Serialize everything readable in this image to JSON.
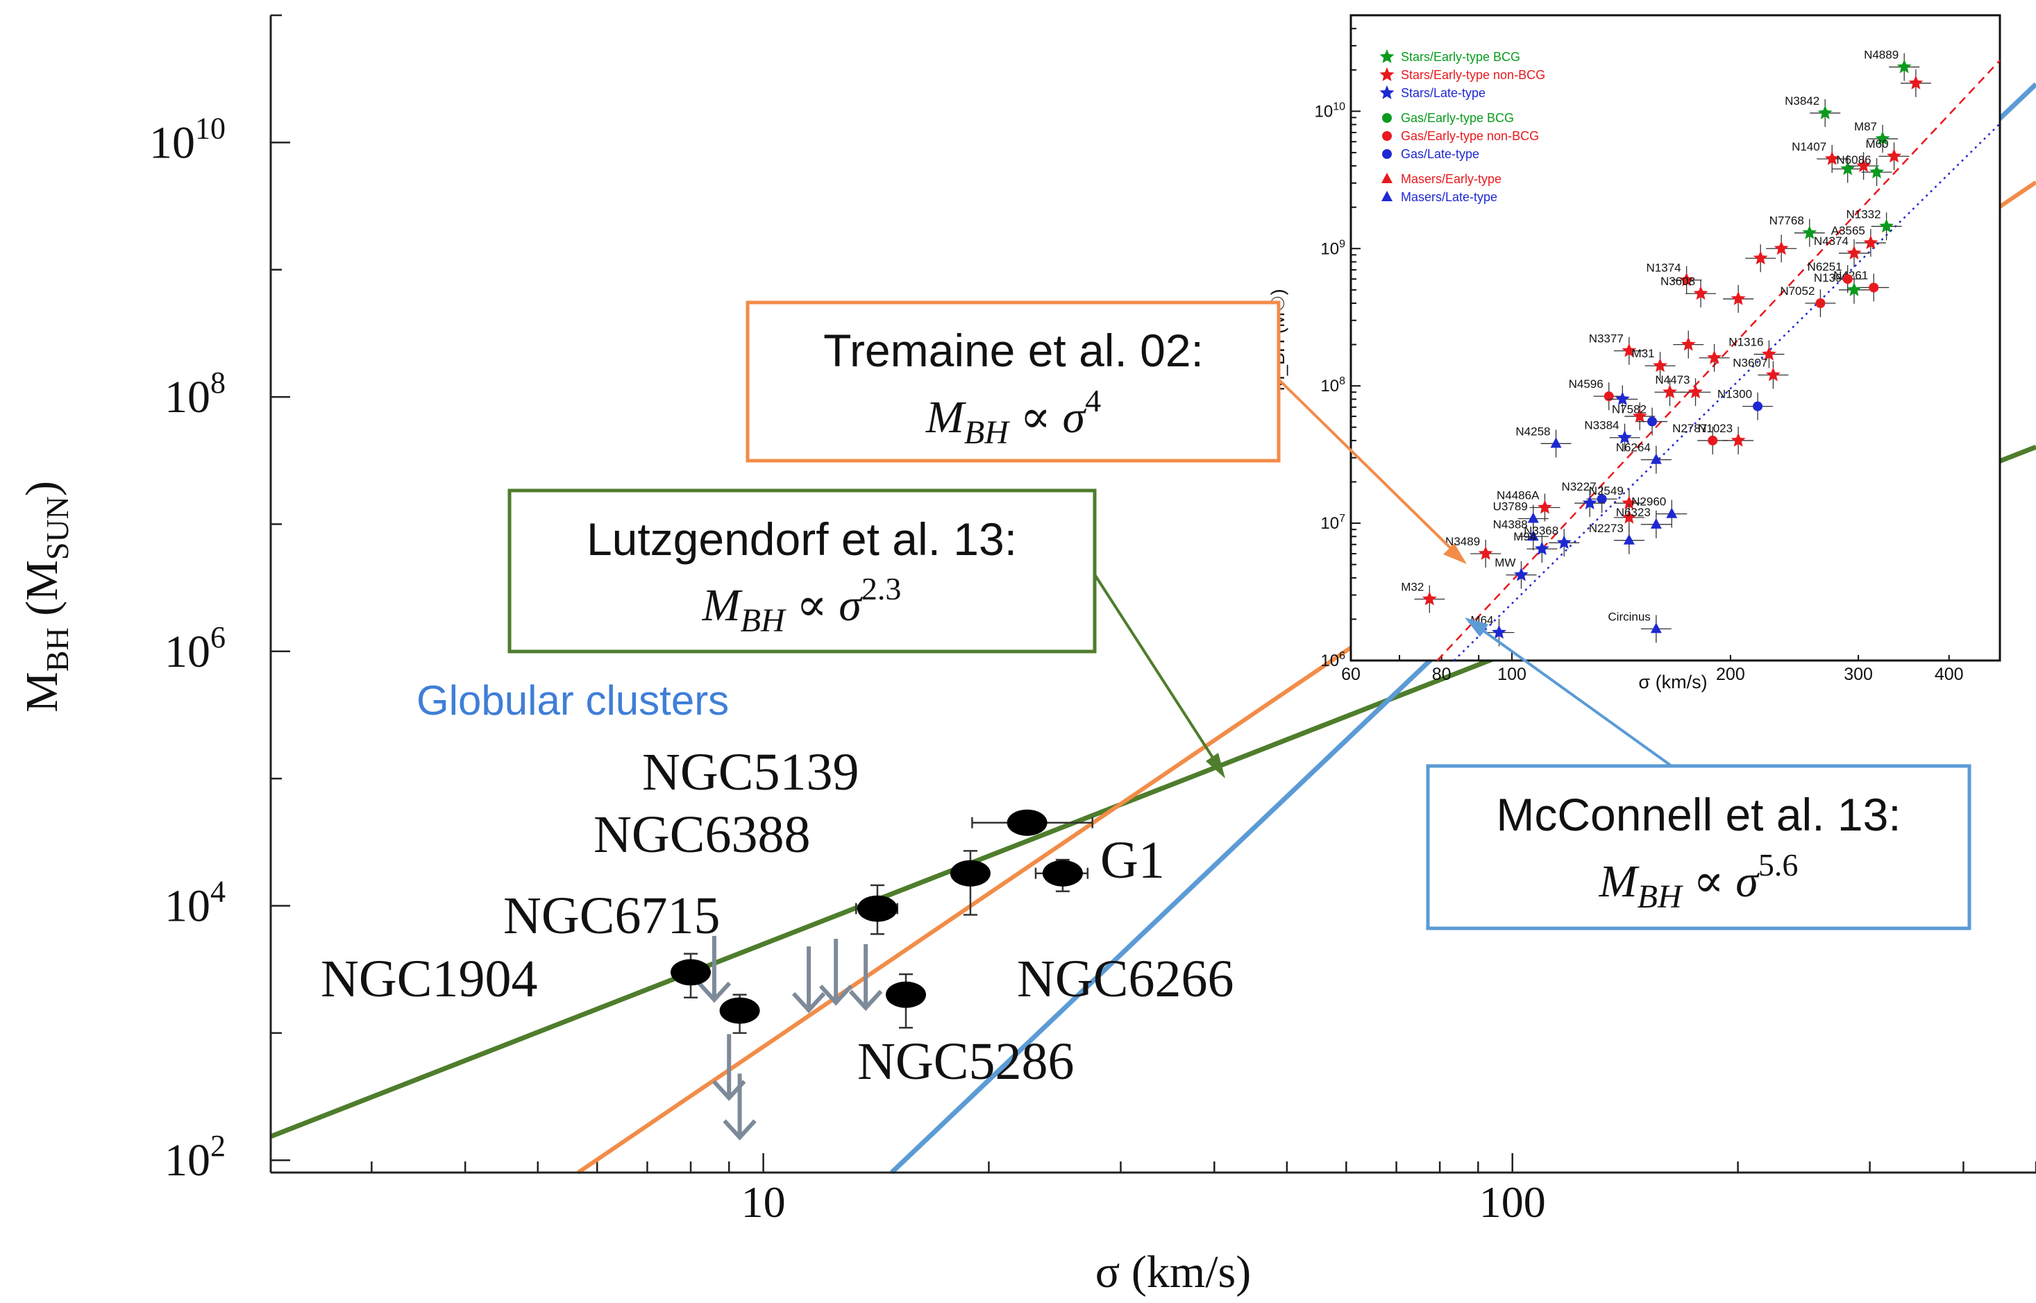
{
  "chart_data": [
    {
      "type": "scatter",
      "title": "",
      "xlabel": "σ (km/s)",
      "ylabel_main": "M",
      "ylabel_sub1": "BH",
      "ylabel_mid": " (M",
      "ylabel_sub2": "SUN",
      "ylabel_end": ")",
      "xscale": "log",
      "yscale": "log",
      "xlim": [
        2.2,
        500
      ],
      "ylim": [
        80,
        100000000000.0
      ],
      "x_ticks": [
        {
          "value": 10,
          "label": "10"
        },
        {
          "value": 100,
          "label": "100"
        }
      ],
      "y_ticks": [
        {
          "value": 100,
          "base": "10",
          "exp": "2"
        },
        {
          "value": 10000,
          "base": "10",
          "exp": "4"
        },
        {
          "value": 1000000,
          "base": "10",
          "exp": "6"
        },
        {
          "value": 100000000,
          "base": "10",
          "exp": "8"
        },
        {
          "value": 10000000000,
          "base": "10",
          "exp": "10"
        }
      ],
      "annotation": "Globular clusters",
      "points": [
        {
          "name": "NGC5139",
          "x": 22.5,
          "y": 45000,
          "xerr": [
            19.0,
            27.5
          ],
          "yerr": [
            37000,
            55000
          ]
        },
        {
          "name": "NGC6388",
          "x": 18.9,
          "y": 18000,
          "xerr": [
            17.9,
            19.9
          ],
          "yerr": [
            8500,
            27000
          ]
        },
        {
          "name": "G1",
          "x": 25.1,
          "y": 18000,
          "xerr": [
            23.1,
            27.1
          ],
          "yerr": [
            13000,
            23000
          ]
        },
        {
          "name": "NGC6715",
          "x": 14.2,
          "y": 9500,
          "xerr": [
            13.3,
            15.1
          ],
          "yerr": [
            6000,
            14500
          ]
        },
        {
          "name": "NGC1904",
          "x": 8.0,
          "y": 3000,
          "xerr": [
            7.7,
            8.3
          ],
          "yerr": [
            1900,
            4200
          ]
        },
        {
          "name": "NGC6266",
          "x": 15.5,
          "y": 2000,
          "xerr": [
            15.0,
            16.0
          ],
          "yerr": [
            1100,
            2900
          ]
        },
        {
          "name": "NGC5286",
          "x": 9.3,
          "y": 1500,
          "xerr": [
            9.1,
            9.5
          ],
          "yerr": [
            1000,
            2000
          ]
        }
      ],
      "upper_limits": [
        {
          "x": 8.6,
          "y": 5800
        },
        {
          "x": 11.5,
          "y": 4800
        },
        {
          "x": 12.5,
          "y": 5500
        },
        {
          "x": 13.7,
          "y": 5000
        },
        {
          "x": 9.0,
          "y": 980
        },
        {
          "x": 9.3,
          "y": 480
        }
      ],
      "relations": [
        {
          "key": "green",
          "color": "#4e7d2c",
          "line1": "Lutzgendorf et al.  13:",
          "eq_var": "M",
          "eq_sub": "BH",
          "eq_prop": " ∝ σ",
          "eq_exp": "2.3",
          "slope": 2.3,
          "anchor_x": 10,
          "anchor_y": 5000
        },
        {
          "key": "orange",
          "color": "#f28c48",
          "line1": "Tremaine et al.  02:",
          "eq_var": "M",
          "eq_sub": "BH",
          "eq_prop": " ∝ σ",
          "eq_exp": "4",
          "slope": 4.0,
          "anchor_x": 10,
          "anchor_y": 780
        },
        {
          "key": "blue",
          "color": "#5b9bd5",
          "line1": "McConnell et al.  13:",
          "eq_var": "M",
          "eq_sub": "BH",
          "eq_prop": " ∝ σ",
          "eq_exp": "5.6",
          "slope": 5.6,
          "anchor_x": 100,
          "anchor_y": 3500000.0
        }
      ]
    },
    {
      "type": "scatter",
      "title": "",
      "xlabel": "σ (km/s)",
      "ylabel": "M_BH (M☉)",
      "xscale": "log",
      "yscale": "log",
      "xlim": [
        60,
        470
      ],
      "ylim": [
        1000000,
        50000000000
      ],
      "x_ticks": [
        {
          "value": 60,
          "label": "60"
        },
        {
          "value": 80,
          "label": "80"
        },
        {
          "value": 100,
          "label": "100"
        },
        {
          "value": 200,
          "label": "200"
        },
        {
          "value": 300,
          "label": "300"
        },
        {
          "value": 400,
          "label": "400"
        }
      ],
      "y_ticks": [
        {
          "value": 1000000,
          "base": "10",
          "exp": "6"
        },
        {
          "value": 10000000,
          "base": "10",
          "exp": "7"
        },
        {
          "value": 100000000,
          "base": "10",
          "exp": "8"
        },
        {
          "value": 1000000000,
          "base": "10",
          "exp": "9"
        },
        {
          "value": 10000000000,
          "base": "10",
          "exp": "10"
        }
      ],
      "legend_position": "top-left",
      "legend": [
        {
          "label": "Stars/Early-type BCG",
          "color": "#0a9b1e",
          "marker": "star"
        },
        {
          "label": "Stars/Early-type non-BCG",
          "color": "#e8191e",
          "marker": "star"
        },
        {
          "label": "Stars/Late-type",
          "color": "#1e28d2",
          "marker": "star"
        },
        {
          "label": "Gas/Early-type BCG",
          "color": "#0a9b1e",
          "marker": "circle"
        },
        {
          "label": "Gas/Early-type non-BCG",
          "color": "#e8191e",
          "marker": "circle"
        },
        {
          "label": "Gas/Late-type",
          "color": "#1e28d2",
          "marker": "circle"
        },
        {
          "label": "Masers/Early-type",
          "color": "#e8191e",
          "marker": "triangle"
        },
        {
          "label": "Masers/Late-type",
          "color": "#1e28d2",
          "marker": "triangle"
        }
      ],
      "points": [
        {
          "name": "N4889",
          "x": 347,
          "y": 21000000000,
          "color": "#0a9b1e",
          "marker": "star"
        },
        {
          "name": "",
          "x": 360,
          "y": 16000000000,
          "color": "#e8191e",
          "marker": "star"
        },
        {
          "name": "N3842",
          "x": 270,
          "y": 9700000000,
          "color": "#0a9b1e",
          "marker": "star"
        },
        {
          "name": "M87",
          "x": 324,
          "y": 6300000000,
          "color": "#0a9b1e",
          "marker": "star"
        },
        {
          "name": "N1407",
          "x": 276,
          "y": 4500000000,
          "color": "#e8191e",
          "marker": "star"
        },
        {
          "name": "M60",
          "x": 336,
          "y": 4700000000,
          "color": "#e8191e",
          "marker": "star"
        },
        {
          "name": "",
          "x": 290,
          "y": 3800000000,
          "color": "#0a9b1e",
          "marker": "star"
        },
        {
          "name": "",
          "x": 305,
          "y": 4000000000,
          "color": "#e8191e",
          "marker": "star"
        },
        {
          "name": "N6086",
          "x": 318,
          "y": 3600000000,
          "color": "#0a9b1e",
          "marker": "star"
        },
        {
          "name": "N7768",
          "x": 257,
          "y": 1300000000,
          "color": "#0a9b1e",
          "marker": "star"
        },
        {
          "name": "N1332",
          "x": 328,
          "y": 1450000000,
          "color": "#0a9b1e",
          "marker": "star"
        },
        {
          "name": "A3565",
          "x": 312,
          "y": 1100000000,
          "color": "#e8191e",
          "marker": "star"
        },
        {
          "name": "",
          "x": 235,
          "y": 1000000000,
          "color": "#e8191e",
          "marker": "star"
        },
        {
          "name": "",
          "x": 220,
          "y": 850000000,
          "color": "#e8191e",
          "marker": "star"
        },
        {
          "name": "N4374",
          "x": 296,
          "y": 925000000,
          "color": "#e8191e",
          "marker": "star"
        },
        {
          "name": "N1374",
          "x": 174,
          "y": 590000000,
          "color": "#e8191e",
          "marker": "star"
        },
        {
          "name": "N3608",
          "x": 182,
          "y": 470000000,
          "color": "#e8191e",
          "marker": "star"
        },
        {
          "name": "",
          "x": 205,
          "y": 430000000,
          "color": "#e8191e",
          "marker": "star"
        },
        {
          "name": "N4261",
          "x": 315,
          "y": 520000000,
          "color": "#e8191e",
          "marker": "circle"
        },
        {
          "name": "N1399",
          "x": 296,
          "y": 500000000,
          "color": "#0a9b1e",
          "marker": "star"
        },
        {
          "name": "N6251",
          "x": 290,
          "y": 600000000,
          "color": "#e8191e",
          "marker": "circle"
        },
        {
          "name": "N7052",
          "x": 266,
          "y": 400000000,
          "color": "#e8191e",
          "marker": "circle"
        },
        {
          "name": "N3377",
          "x": 145,
          "y": 180000000,
          "color": "#e8191e",
          "marker": "star"
        },
        {
          "name": "M31",
          "x": 160,
          "y": 140000000,
          "color": "#e8191e",
          "marker": "star"
        },
        {
          "name": "N1316",
          "x": 226,
          "y": 170000000,
          "color": "#e8191e",
          "marker": "star"
        },
        {
          "name": "",
          "x": 175,
          "y": 200000000,
          "color": "#e8191e",
          "marker": "star"
        },
        {
          "name": "",
          "x": 190,
          "y": 160000000,
          "color": "#e8191e",
          "marker": "star"
        },
        {
          "name": "N3607",
          "x": 229,
          "y": 120000000,
          "color": "#e8191e",
          "marker": "star"
        },
        {
          "name": "N4596",
          "x": 136,
          "y": 84000000,
          "color": "#e8191e",
          "marker": "circle"
        },
        {
          "name": "",
          "x": 142,
          "y": 80000000,
          "color": "#1e28d2",
          "marker": "star"
        },
        {
          "name": "N4473",
          "x": 179,
          "y": 90000000,
          "color": "#e8191e",
          "marker": "star"
        },
        {
          "name": "N1300",
          "x": 218,
          "y": 71000000,
          "color": "#1e28d2",
          "marker": "circle"
        },
        {
          "name": "",
          "x": 165,
          "y": 90000000,
          "color": "#e8191e",
          "marker": "star"
        },
        {
          "name": "",
          "x": 150,
          "y": 60000000,
          "color": "#e8191e",
          "marker": "star"
        },
        {
          "name": "N4258",
          "x": 115,
          "y": 38000000,
          "color": "#1e28d2",
          "marker": "triangle"
        },
        {
          "name": "N7582",
          "x": 156,
          "y": 55000000,
          "color": "#1e28d2",
          "marker": "circle"
        },
        {
          "name": "N3384",
          "x": 143,
          "y": 42000000,
          "color": "#1e28d2",
          "marker": "star"
        },
        {
          "name": "N2787",
          "x": 189,
          "y": 40000000,
          "color": "#e8191e",
          "marker": "circle"
        },
        {
          "name": "N1023",
          "x": 205,
          "y": 40000000,
          "color": "#e8191e",
          "marker": "star"
        },
        {
          "name": "N6264",
          "x": 158,
          "y": 29000000,
          "color": "#1e28d2",
          "marker": "triangle"
        },
        {
          "name": "N3227",
          "x": 133,
          "y": 15000000,
          "color": "#1e28d2",
          "marker": "circle"
        },
        {
          "name": "N4486A",
          "x": 111,
          "y": 13000000,
          "color": "#e8191e",
          "marker": "star"
        },
        {
          "name": "U3789",
          "x": 107,
          "y": 10800000,
          "color": "#1e28d2",
          "marker": "triangle"
        },
        {
          "name": "N2549",
          "x": 145,
          "y": 14000000,
          "color": "#e8191e",
          "marker": "star"
        },
        {
          "name": "",
          "x": 145,
          "y": 11000000,
          "color": "#e8191e",
          "marker": "star"
        },
        {
          "name": "N2960",
          "x": 166,
          "y": 11700000,
          "color": "#1e28d2",
          "marker": "triangle"
        },
        {
          "name": "N6323",
          "x": 158,
          "y": 9800000,
          "color": "#1e28d2",
          "marker": "triangle"
        },
        {
          "name": "",
          "x": 128,
          "y": 14000000,
          "color": "#1e28d2",
          "marker": "star"
        },
        {
          "name": "N4388",
          "x": 107,
          "y": 8000000,
          "color": "#1e28d2",
          "marker": "triangle"
        },
        {
          "name": "N3368",
          "x": 118,
          "y": 7200000,
          "color": "#1e28d2",
          "marker": "star"
        },
        {
          "name": "N2273",
          "x": 145,
          "y": 7500000,
          "color": "#1e28d2",
          "marker": "triangle"
        },
        {
          "name": "M94",
          "x": 110,
          "y": 6500000,
          "color": "#1e28d2",
          "marker": "star"
        },
        {
          "name": "N3489",
          "x": 92,
          "y": 6000000,
          "color": "#e8191e",
          "marker": "star"
        },
        {
          "name": "MW",
          "x": 103,
          "y": 4200000,
          "color": "#1e28d2",
          "marker": "star"
        },
        {
          "name": "M32",
          "x": 77,
          "y": 2800000,
          "color": "#e8191e",
          "marker": "star"
        },
        {
          "name": "M64",
          "x": 96,
          "y": 1600000,
          "color": "#1e28d2",
          "marker": "star"
        },
        {
          "name": "Circinus",
          "x": 158,
          "y": 1700000,
          "color": "#1e28d2",
          "marker": "triangle"
        }
      ],
      "fits": [
        {
          "color": "#e8191e",
          "style": "dashed",
          "slope": 5.64,
          "anchor_x": 100,
          "anchor_y": 3800000
        },
        {
          "color": "#1e28d2",
          "style": "dotted",
          "slope": 5.2,
          "anchor_x": 100,
          "anchor_y": 2600000
        }
      ]
    }
  ]
}
